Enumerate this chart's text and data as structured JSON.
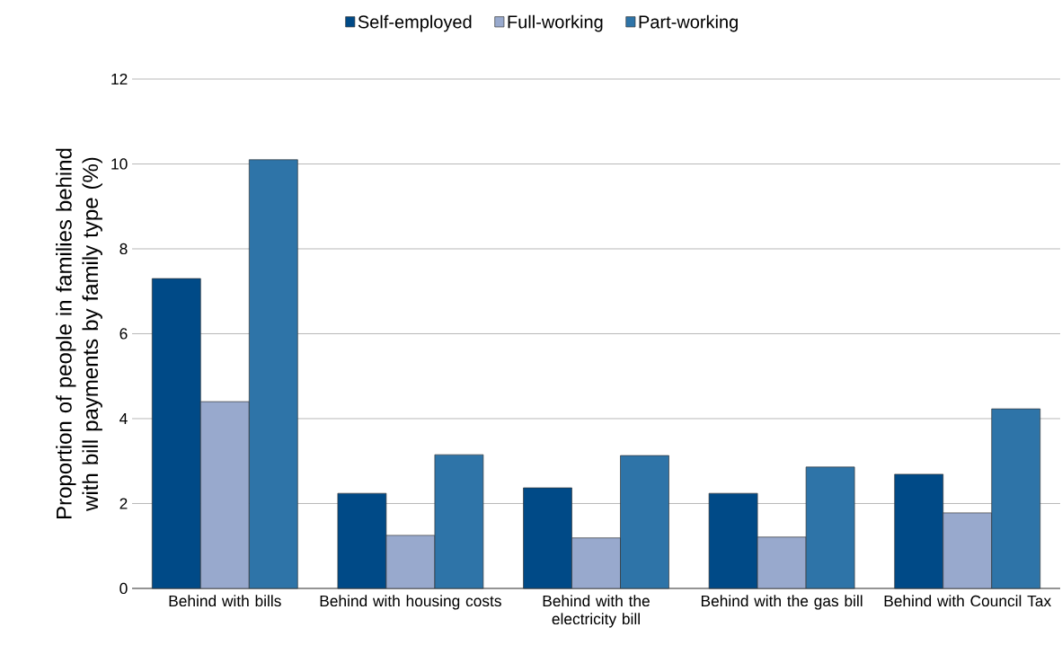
{
  "chart_data": {
    "type": "bar",
    "ylabel": "Proportion of people in families behind with bill payments by family type (%)",
    "categories": [
      "Behind with bills",
      "Behind with housing costs",
      "Behind with the electricity bill",
      "Behind with the gas bill",
      "Behind with Council Tax"
    ],
    "series": [
      {
        "name": "Self-employed",
        "color": "#004a87",
        "values": [
          7.3,
          2.24,
          2.37,
          2.24,
          2.69
        ]
      },
      {
        "name": "Full-working",
        "color": "#98a9cd",
        "values": [
          4.4,
          1.25,
          1.19,
          1.21,
          1.78
        ]
      },
      {
        "name": "Part-working",
        "color": "#2e74a8",
        "values": [
          10.1,
          3.15,
          3.13,
          2.86,
          4.23
        ]
      }
    ],
    "ylim": [
      0,
      12
    ],
    "yticks": [
      0,
      2,
      4,
      6,
      8,
      10,
      12
    ],
    "grid": "y",
    "legend": "top"
  }
}
